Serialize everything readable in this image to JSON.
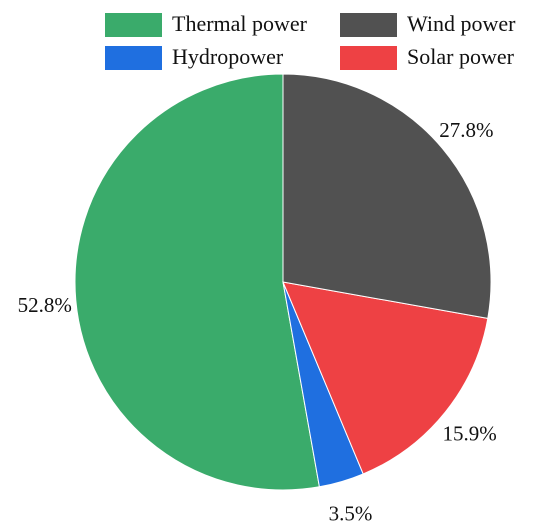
{
  "chart_data": {
    "type": "pie",
    "categories": [
      "Thermal power",
      "Hydropower",
      "Solar power",
      "Wind power"
    ],
    "values": [
      52.8,
      3.5,
      15.9,
      27.8
    ],
    "value_labels": [
      "52.8%",
      "3.5%",
      "15.9%",
      "27.8%"
    ],
    "colors": [
      "#3aab6b",
      "#1f6fe0",
      "#ee4144",
      "#515151"
    ]
  }
}
